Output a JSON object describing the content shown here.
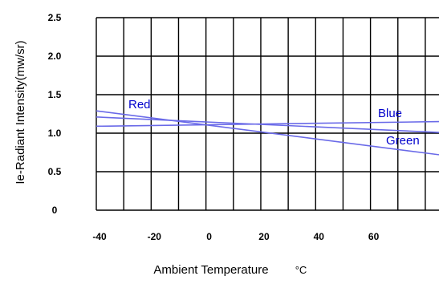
{
  "chart_data": {
    "type": "line",
    "title": "",
    "xlabel": "Ambient Temperature",
    "xunit": "°C",
    "ylabel": "Ie-Radiant Intensity(mw/sr)",
    "xlim": [
      -40,
      85
    ],
    "ylim": [
      0,
      2.5
    ],
    "x_ticks": [
      -40,
      -20,
      0,
      20,
      40,
      60
    ],
    "x_tick_labels": [
      "-40",
      "-20",
      "0",
      "20",
      "40",
      "60"
    ],
    "y_ticks": [
      0,
      0.5,
      1.0,
      1.5,
      2.0,
      2.5
    ],
    "y_tick_labels": [
      "0",
      "0.5",
      "1.0",
      "1.5",
      "2.0",
      "2.5"
    ],
    "grid": true,
    "line_color": "#6a6ae8",
    "label_color": "#0000cc",
    "series": [
      {
        "name": "Red",
        "x": [
          -40,
          85
        ],
        "y": [
          1.29,
          0.72
        ]
      },
      {
        "name": "Blue",
        "x": [
          -40,
          85
        ],
        "y": [
          1.09,
          1.15
        ]
      },
      {
        "name": "Green",
        "x": [
          -40,
          85
        ],
        "y": [
          1.21,
          1.01
        ]
      }
    ]
  }
}
